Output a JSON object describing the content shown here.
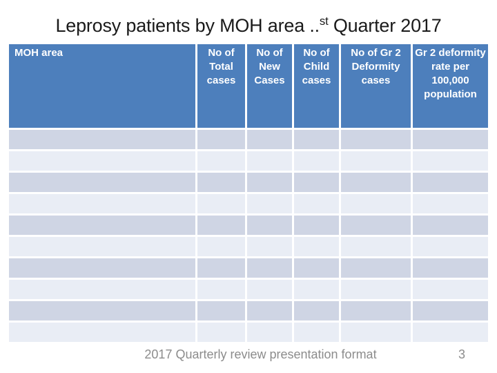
{
  "slide": {
    "title": {
      "prefix": "Leprosy patients by MOH area ..",
      "superscript": "st",
      "suffix": " Quarter 2017"
    },
    "footer": {
      "text": "2017 Quarterly review presentation format",
      "page_number": "3"
    }
  },
  "table": {
    "columns": [
      {
        "label": "MOH area"
      },
      {
        "label": "No of Total cases"
      },
      {
        "label": "No of New Cases"
      },
      {
        "label": "No of Child cases"
      },
      {
        "label": "No of Gr 2 Deformity cases"
      },
      {
        "label": "Gr 2 deformity rate per 100,000 population"
      }
    ],
    "row_count": 10,
    "body_cells_empty": true,
    "colors": {
      "header_bg": "#4d7fbc",
      "header_text": "#ffffff",
      "band_dark": "#cfd5e4",
      "band_light": "#e9edf5"
    }
  }
}
